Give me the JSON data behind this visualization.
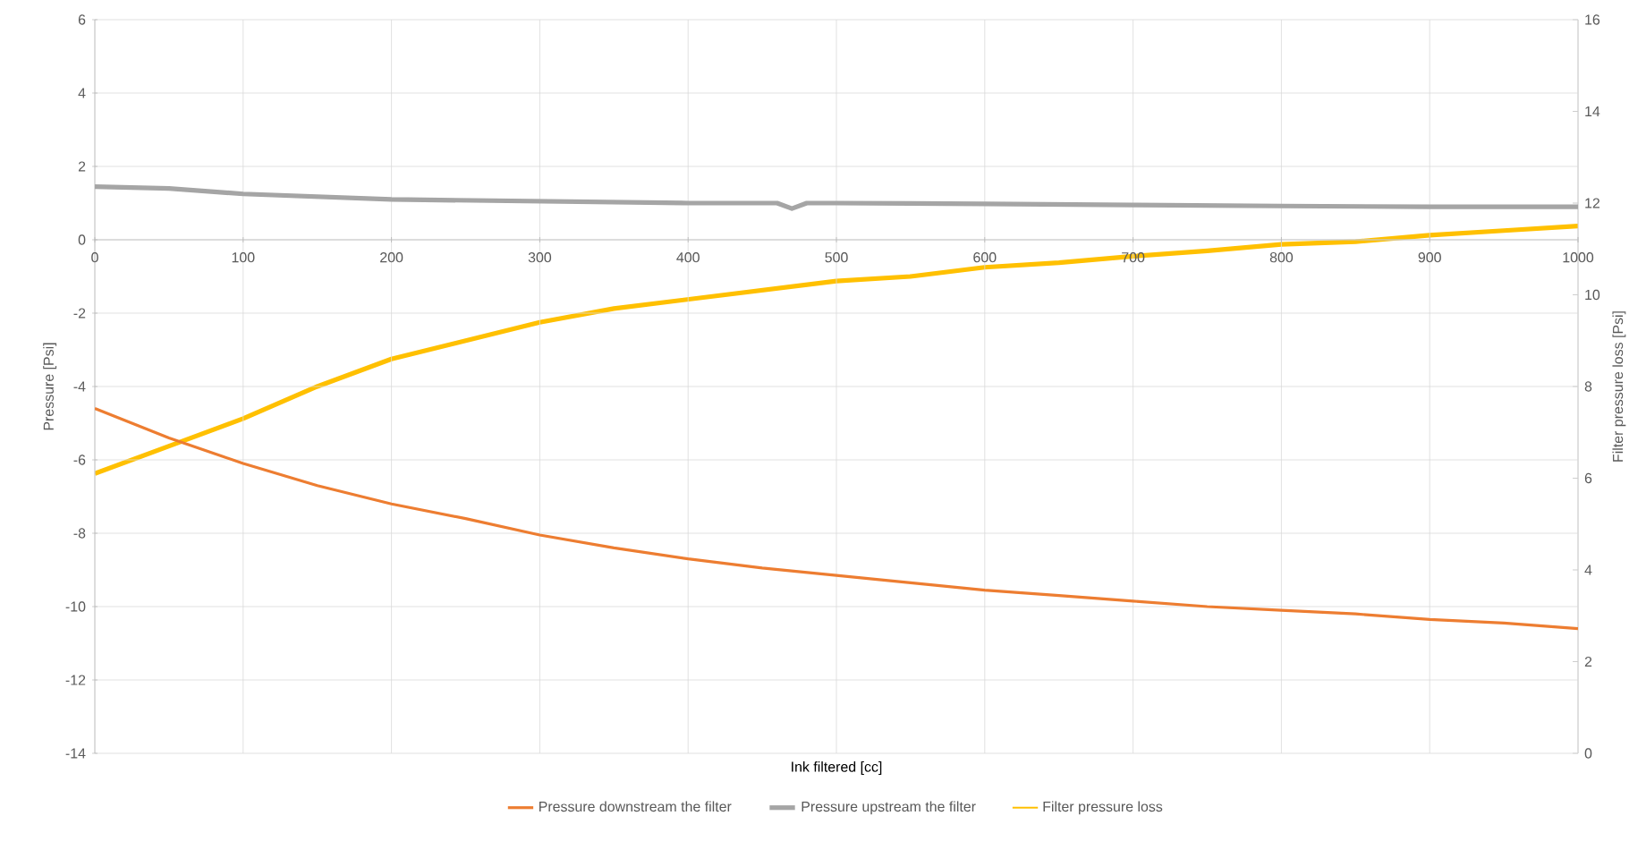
{
  "chart_data": {
    "type": "line",
    "xlabel": "Ink filtered [cc]",
    "ylabel": "Pressure [Psi]",
    "y2label": "Filter pressure loss [Psi]",
    "xlim": [
      0,
      1000
    ],
    "xticks": [
      0,
      100,
      200,
      300,
      400,
      500,
      600,
      700,
      800,
      900,
      1000
    ],
    "ylim": [
      -14,
      6
    ],
    "yticks": [
      -14,
      -12,
      -10,
      -8,
      -6,
      -4,
      -2,
      0,
      2,
      4,
      6
    ],
    "y2lim": [
      0,
      16
    ],
    "y2ticks": [
      0,
      2,
      4,
      6,
      8,
      10,
      12,
      14,
      16
    ],
    "grid": true,
    "legend": "bottom",
    "marker": "none",
    "line_style": "solid",
    "series": [
      {
        "name": "Pressure downstream the filter",
        "color": "#ed7d31",
        "x": [
          0,
          50,
          100,
          150,
          200,
          250,
          300,
          350,
          400,
          450,
          500,
          550,
          600,
          650,
          700,
          750,
          800,
          850,
          900,
          950,
          1000
        ],
        "values": [
          -4.6,
          -5.4,
          -6.1,
          -6.7,
          -7.2,
          -7.6,
          -8.05,
          -8.4,
          -8.7,
          -8.95,
          -9.15,
          -9.35,
          -9.55,
          -9.7,
          -9.85,
          -10.0,
          -10.1,
          -10.2,
          -10.35,
          -10.45,
          -10.6
        ]
      },
      {
        "name": "Pressure upstream the filter",
        "color": "#a5a5a5",
        "x": [
          0,
          50,
          100,
          200,
          300,
          400,
          460,
          470,
          480,
          500,
          600,
          700,
          800,
          900,
          1000
        ],
        "values": [
          1.45,
          1.4,
          1.25,
          1.1,
          1.05,
          1.0,
          1.0,
          0.85,
          1.0,
          1.0,
          0.98,
          0.95,
          0.92,
          0.9,
          0.9
        ]
      },
      {
        "name": "Filter pressure loss",
        "color": "#ffc000",
        "axis": "y2",
        "x": [
          0,
          50,
          100,
          150,
          200,
          250,
          300,
          350,
          400,
          450,
          500,
          550,
          600,
          650,
          700,
          750,
          800,
          850,
          900,
          950,
          1000
        ],
        "values": [
          6.1,
          6.7,
          7.3,
          8.0,
          8.6,
          9.0,
          9.4,
          9.7,
          9.9,
          10.1,
          10.3,
          10.4,
          10.6,
          10.7,
          10.84,
          10.96,
          11.1,
          11.16,
          11.3,
          11.4,
          11.5
        ]
      }
    ]
  }
}
